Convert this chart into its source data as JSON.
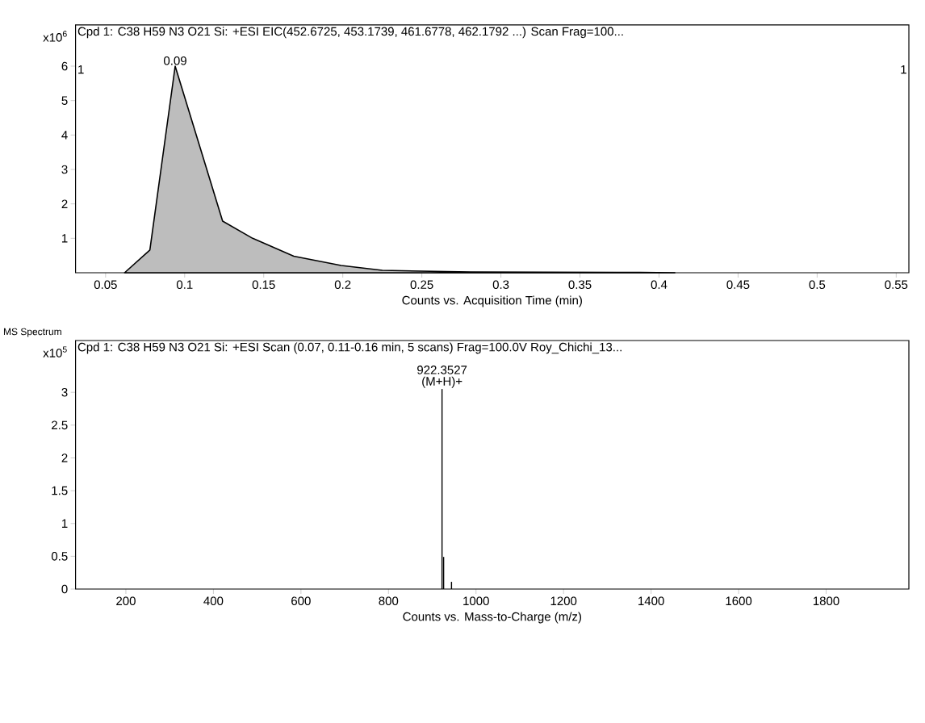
{
  "chart_data": [
    {
      "type": "area",
      "title": "Cpd 1: C38 H59 N3 O21 Si: +ESI EIC(452.6725, 453.1739, 461.6778, 462.1792 ...) Scan Frag=100...",
      "xlabel": "Counts vs. Acquisition Time (min)",
      "ylabel": "x10$^{6}$",
      "x": [
        0.062,
        0.078,
        0.094,
        0.124,
        0.143,
        0.169,
        0.199,
        0.225,
        0.281,
        0.388,
        0.41
      ],
      "values": [
        0,
        0.66,
        6.0,
        1.5,
        1.0,
        0.48,
        0.21,
        0.07,
        0.02,
        0.01,
        0
      ],
      "color": "#bdbdbd",
      "xlim": [
        0.031,
        0.558
      ],
      "xticks": [
        0.05,
        0.1,
        0.15,
        0.2,
        0.25,
        0.3,
        0.35,
        0.4,
        0.45,
        0.5,
        0.55
      ],
      "ylim": [
        0,
        7.2
      ],
      "yticks": [
        1,
        2,
        3,
        4,
        5,
        6
      ],
      "annotations": [
        "0.09",
        "1",
        "1"
      ]
    },
    {
      "type": "bar",
      "title": "MS Spectrum",
      "subtitle": "Cpd 1: C38 H59 N3 O21 Si: +ESI Scan (0.07, 0.11-0.16 min, 5 scans) Frag=100.0V Roy_Chichi_13...",
      "xlabel": "Counts vs. Mass-to-Charge (m/z)",
      "ylabel": "x10$^{5}$",
      "x": [
        922.35,
        926,
        944
      ],
      "values": [
        3.05,
        0.49,
        0.11
      ],
      "color": "#000000",
      "xlim": [
        85,
        1989
      ],
      "xticks": [
        200,
        400,
        600,
        800,
        1000,
        1200,
        1400,
        1600,
        1800
      ],
      "ylim": [
        0,
        3.79
      ],
      "yticks": [
        0,
        0.5,
        1,
        1.5,
        2,
        2.5,
        3
      ],
      "annotations": [
        "922.3527",
        "(M+H)+"
      ]
    }
  ]
}
